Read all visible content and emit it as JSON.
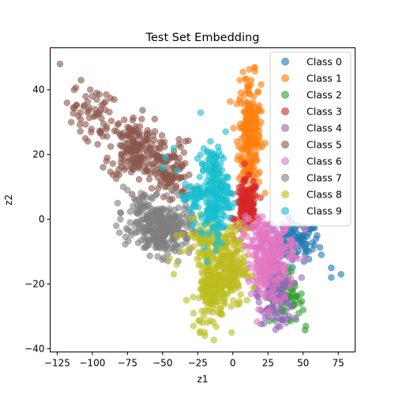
{
  "chart_data": {
    "type": "scatter",
    "title": "Test Set Embedding",
    "xlabel": "z1",
    "ylabel": "z2",
    "xlim": [
      -130,
      87
    ],
    "ylim": [
      -41,
      53
    ],
    "xticks": [
      -125,
      -100,
      -75,
      -50,
      -25,
      0,
      25,
      50,
      75
    ],
    "yticks": [
      -40,
      -20,
      0,
      20,
      40
    ],
    "grid": false,
    "legend_position": "top-right",
    "marker_alpha": 0.6,
    "series": [
      {
        "name": "Class 0",
        "color": "#1f77b4",
        "clusters": [
          {
            "cx": 45,
            "cy": -7,
            "sx": 8,
            "sy": 3,
            "n": 80
          }
        ],
        "points": [
          [
            60,
            -5
          ],
          [
            63,
            -11
          ],
          [
            70,
            -15
          ],
          [
            77,
            -17
          ],
          [
            70,
            -18
          ],
          [
            55,
            -3
          ],
          [
            52,
            -10
          ],
          [
            58,
            -8
          ]
        ]
      },
      {
        "name": "Class 1",
        "color": "#ff7f0e",
        "clusters": [
          {
            "cx": 12,
            "cy": 26,
            "sx": 4,
            "sy": 9,
            "n": 220
          }
        ],
        "points": [
          [
            5,
            43
          ],
          [
            13,
            43
          ],
          [
            10,
            40
          ],
          [
            9,
            12
          ],
          [
            14,
            8
          ],
          [
            18,
            14
          ],
          [
            3,
            24
          ],
          [
            20,
            30
          ],
          [
            15,
            38
          ],
          [
            11,
            41
          ]
        ]
      },
      {
        "name": "Class 2",
        "color": "#2ca02c",
        "clusters": [
          {
            "cx": 38,
            "cy": -24,
            "sx": 6,
            "sy": 4,
            "n": 60
          }
        ],
        "points": [
          [
            46,
            -24
          ],
          [
            48,
            -26
          ],
          [
            50,
            -28
          ],
          [
            45,
            -31
          ],
          [
            52,
            -33
          ],
          [
            42,
            -27
          ],
          [
            28,
            -18
          ],
          [
            35,
            -20
          ],
          [
            47,
            -29
          ]
        ]
      },
      {
        "name": "Class 3",
        "color": "#d62728",
        "clusters": [
          {
            "cx": 10,
            "cy": 4,
            "sx": 4,
            "sy": 4,
            "n": 120
          }
        ],
        "points": [
          [
            0,
            0
          ],
          [
            5,
            8
          ],
          [
            15,
            10
          ],
          [
            18,
            0
          ],
          [
            2,
            -2
          ],
          [
            20,
            -5
          ],
          [
            8,
            12
          ]
        ]
      },
      {
        "name": "Class 4",
        "color": "#9467bd",
        "clusters": [
          {
            "cx": 30,
            "cy": -22,
            "sx": 6,
            "sy": 5,
            "n": 130
          }
        ],
        "points": [
          [
            20,
            -28
          ],
          [
            25,
            -30
          ],
          [
            35,
            -31
          ],
          [
            38,
            -32
          ],
          [
            40,
            -30
          ],
          [
            32,
            -33
          ],
          [
            18,
            -24
          ]
        ]
      },
      {
        "name": "Class 5",
        "color": "#8c564b",
        "clusters": [
          {
            "cx": -70,
            "cy": 22,
            "sx": 9,
            "sy": 5,
            "n": 170
          },
          {
            "cx": -100,
            "cy": 33,
            "sx": 7,
            "sy": 4,
            "n": 50
          },
          {
            "cx": -45,
            "cy": 14,
            "sx": 8,
            "sy": 5,
            "n": 110
          }
        ],
        "points": [
          [
            -123,
            48
          ],
          [
            -113,
            40
          ],
          [
            -108,
            43
          ],
          [
            -118,
            36
          ],
          [
            -110,
            32
          ],
          [
            -105,
            25
          ],
          [
            -90,
            18
          ],
          [
            -95,
            33
          ],
          [
            -115,
            30
          ],
          [
            -100,
            38
          ]
        ]
      },
      {
        "name": "Class 6",
        "color": "#e377c2",
        "clusters": [
          {
            "cx": 25,
            "cy": -8,
            "sx": 10,
            "sy": 4,
            "n": 180
          },
          {
            "cx": 25,
            "cy": -17,
            "sx": 6,
            "sy": 5,
            "n": 90
          }
        ],
        "points": [
          [
            45,
            -8
          ],
          [
            40,
            -12
          ],
          [
            10,
            0
          ],
          [
            6,
            -6
          ],
          [
            30,
            -25
          ],
          [
            35,
            -15
          ]
        ]
      },
      {
        "name": "Class 7",
        "color": "#7f7f7f",
        "clusters": [
          {
            "cx": -50,
            "cy": -3,
            "sx": 10,
            "sy": 4,
            "n": 260
          },
          {
            "cx": -68,
            "cy": 2,
            "sx": 5,
            "sy": 4,
            "n": 40
          }
        ],
        "points": [
          [
            -82,
            5
          ],
          [
            -78,
            10
          ],
          [
            -80,
            0
          ],
          [
            -83,
            -2
          ],
          [
            -75,
            9
          ],
          [
            -38,
            -10
          ],
          [
            -30,
            -9
          ],
          [
            -33,
            -6
          ]
        ]
      },
      {
        "name": "Class 8",
        "color": "#bcbd22",
        "clusters": [
          {
            "cx": -5,
            "cy": -15,
            "sx": 7,
            "sy": 6,
            "n": 240
          },
          {
            "cx": -15,
            "cy": -22,
            "sx": 5,
            "sy": 6,
            "n": 120
          },
          {
            "cx": -20,
            "cy": -6,
            "sx": 7,
            "sy": 3,
            "n": 60
          }
        ],
        "points": [
          [
            -28,
            -33
          ],
          [
            -20,
            -36
          ],
          [
            -33,
            -25
          ],
          [
            -42,
            -17
          ],
          [
            -40,
            -14
          ],
          [
            -36,
            -10
          ],
          [
            10,
            -25
          ],
          [
            -40,
            -5
          ],
          [
            -45,
            -12
          ],
          [
            -28,
            -29
          ],
          [
            0,
            -5
          ],
          [
            5,
            -1
          ]
        ]
      },
      {
        "name": "Class 9",
        "color": "#17becf",
        "clusters": [
          {
            "cx": -13,
            "cy": 8,
            "sx": 5,
            "sy": 7,
            "n": 220
          },
          {
            "cx": -28,
            "cy": 7,
            "sx": 4,
            "sy": 3,
            "n": 40
          }
        ],
        "points": [
          [
            -50,
            16
          ],
          [
            -48,
            19
          ],
          [
            -40,
            15
          ],
          [
            -35,
            6
          ],
          [
            -23,
            20
          ],
          [
            -18,
            21
          ],
          [
            -42,
            22
          ],
          [
            -30,
            2
          ]
        ]
      }
    ]
  }
}
